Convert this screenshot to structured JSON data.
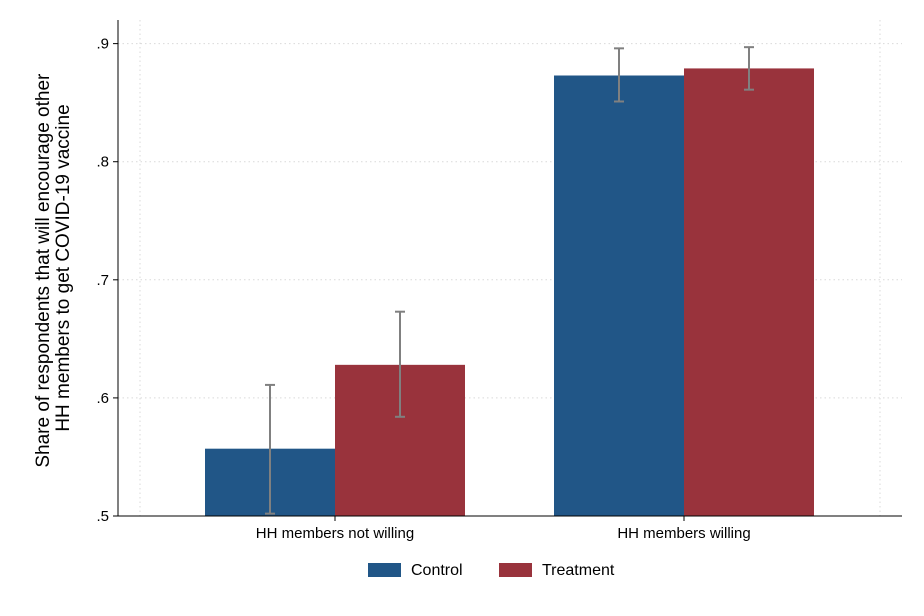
{
  "chart_data": {
    "type": "bar",
    "categories": [
      "HH members not willing",
      "HH members willing"
    ],
    "series": [
      {
        "name": "Control",
        "color": "#215687",
        "values": [
          0.557,
          0.873
        ],
        "ci_low": [
          0.502,
          0.851
        ],
        "ci_high": [
          0.611,
          0.896
        ]
      },
      {
        "name": "Treatment",
        "color": "#99333c",
        "values": [
          0.628,
          0.879
        ],
        "ci_low": [
          0.584,
          0.861
        ],
        "ci_high": [
          0.673,
          0.897
        ]
      }
    ],
    "ylabel_lines": [
      "Share of respondents that will encourage other",
      "HH members to get COVID-19 vaccine"
    ],
    "xlabel": "",
    "ylim": [
      0.5,
      0.92
    ],
    "yticks": [
      0.5,
      0.6,
      0.7,
      0.8,
      0.9
    ],
    "ytick_labels": [
      ".5",
      ".6",
      ".7",
      ".8",
      ".9"
    ],
    "grid": true,
    "error_bar_color": "#808080",
    "legend_position": "bottom"
  }
}
